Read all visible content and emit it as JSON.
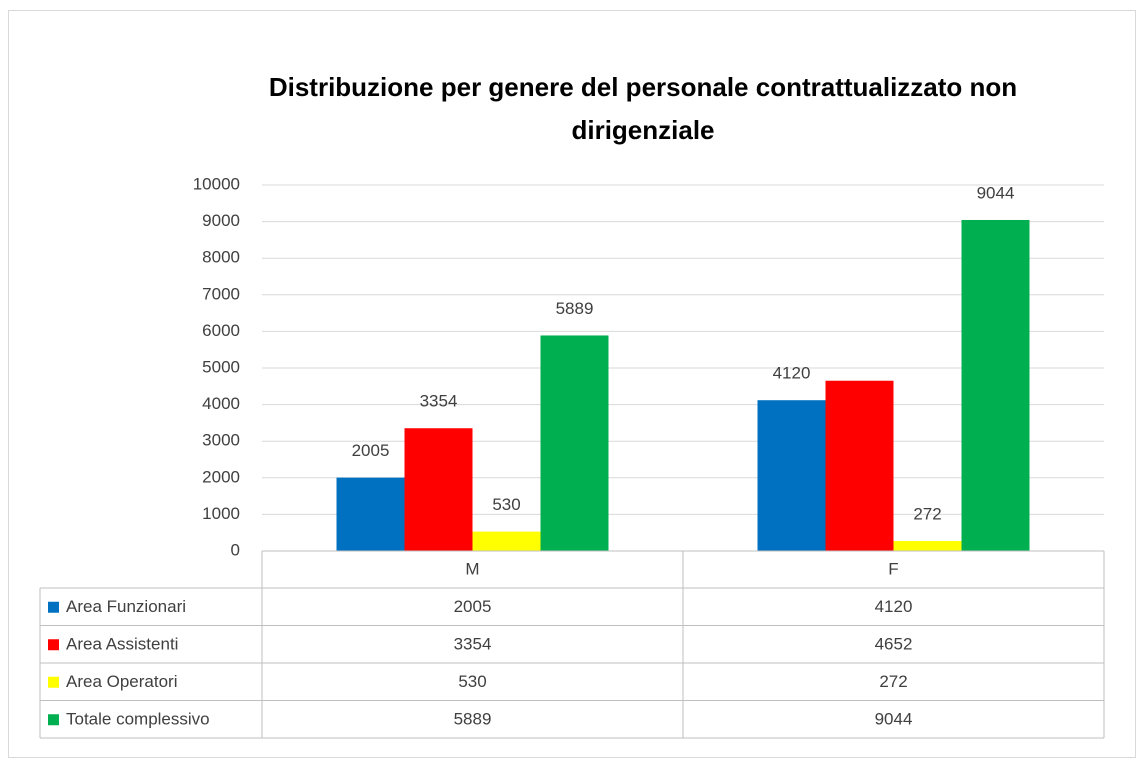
{
  "chart_data": {
    "type": "bar",
    "title": "Distribuzione per genere del personale contrattualizzato non dirigenziale",
    "categories": [
      "M",
      "F"
    ],
    "series": [
      {
        "name": "Area Funzionari",
        "color": "#0070c0",
        "values": [
          2005,
          4120
        ]
      },
      {
        "name": "Area Assistenti",
        "color": "#ff0000",
        "values": [
          3354,
          4652
        ],
        "value_labels": [
          "3354",
          null
        ]
      },
      {
        "name": "Area Operatori",
        "color": "#ffff00",
        "values": [
          530,
          272
        ]
      },
      {
        "name": "Totale complessivo",
        "color": "#00b050",
        "values": [
          5889,
          9044
        ]
      }
    ],
    "ylim": [
      0,
      10000
    ],
    "yticks": [
      0,
      1000,
      2000,
      3000,
      4000,
      5000,
      6000,
      7000,
      8000,
      9000,
      10000
    ],
    "grid": true,
    "data_table": true
  }
}
